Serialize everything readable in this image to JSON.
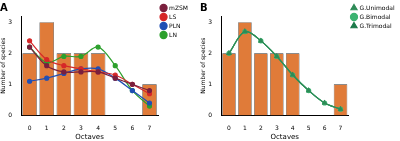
{
  "chart_data": [
    {
      "type": "bar",
      "title": "A",
      "x_label": "Octaves",
      "y_label": "Number of species",
      "categories": [
        "0",
        "1",
        "2",
        "3",
        "4",
        "5",
        "6",
        "7"
      ],
      "ylim": [
        0,
        3.2
      ],
      "yticks": [
        0,
        1,
        2,
        3
      ],
      "grid": false,
      "legend": "right",
      "series": [
        {
          "type": "bar",
          "color": "#e07b39",
          "values": [
            2,
            3,
            2,
            2,
            2,
            0,
            0,
            1
          ]
        },
        {
          "name": "mZSM",
          "type": "line",
          "color": "#7a1f3d",
          "marker": "circle",
          "line_style": "solid",
          "values": [
            2.2,
            1.6,
            1.4,
            1.4,
            1.4,
            1.2,
            1.0,
            0.8
          ]
        },
        {
          "name": "LS",
          "type": "line",
          "color": "#d62728",
          "marker": "circle",
          "line_style": "solid",
          "values": [
            2.4,
            1.8,
            1.6,
            1.5,
            1.4,
            1.3,
            1.0,
            0.7
          ]
        },
        {
          "name": "PLN",
          "type": "line",
          "color": "#1f4fb4",
          "marker": "circle",
          "line_style": "solid",
          "values": [
            1.1,
            1.2,
            1.35,
            1.5,
            1.5,
            1.2,
            0.8,
            0.4
          ]
        },
        {
          "name": "LN",
          "type": "line",
          "color": "#2ca02c",
          "marker": "circle",
          "line_style": "solid",
          "values": [
            2.2,
            1.7,
            1.9,
            1.9,
            2.2,
            1.6,
            0.8,
            0.3
          ]
        }
      ]
    },
    {
      "type": "bar",
      "title": "B",
      "x_label": "Octaves",
      "y_label": "Number of species",
      "categories": [
        "0",
        "1",
        "2",
        "3",
        "4",
        "5",
        "6",
        "7"
      ],
      "ylim": [
        0,
        3.2
      ],
      "yticks": [
        0,
        1,
        2,
        3
      ],
      "grid": false,
      "legend": "right",
      "series": [
        {
          "type": "bar",
          "color": "#e07b39",
          "values": [
            2,
            3,
            2,
            2,
            2,
            0,
            0,
            1
          ]
        },
        {
          "name": "G.Unimodal",
          "type": "line",
          "color": "#2e8b57",
          "marker": "triangle",
          "line_style": "solid",
          "values": [
            2.0,
            2.7,
            2.4,
            1.9,
            1.3,
            0.8,
            0.4,
            0.2
          ]
        },
        {
          "name": "G.Bimodal",
          "type": "line",
          "color": "#3cb371",
          "marker": "circle",
          "line_style": "solid",
          "values": [
            2.0,
            2.7,
            2.4,
            1.9,
            1.3,
            0.8,
            0.4,
            0.2
          ]
        },
        {
          "name": "G.Trimodal",
          "type": "line",
          "color": "#1b7a4a",
          "marker": "triangle",
          "line_style": "solid",
          "values": [
            2.0,
            2.7,
            2.4,
            1.9,
            1.3,
            0.8,
            0.4,
            0.2
          ]
        }
      ]
    }
  ]
}
